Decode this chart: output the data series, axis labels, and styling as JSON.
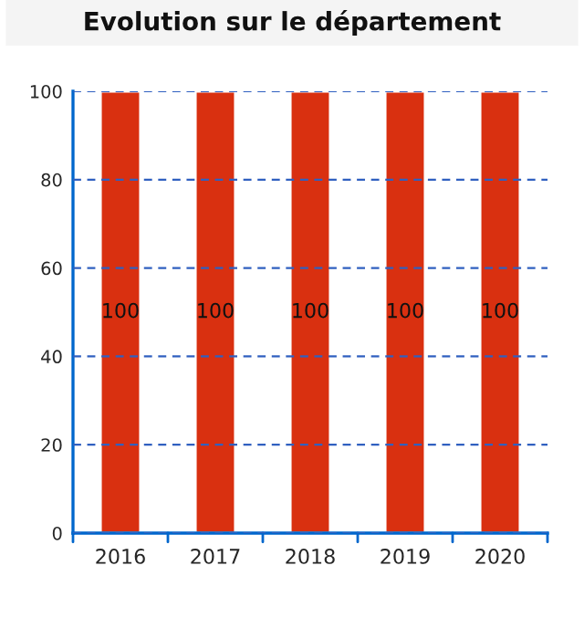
{
  "chart_data": {
    "type": "bar",
    "title": "Evolution sur le département",
    "categories": [
      "2016",
      "2017",
      "2018",
      "2019",
      "2020"
    ],
    "values": [
      100,
      100,
      100,
      100,
      100
    ],
    "color": "#d93010",
    "ylim": [
      0,
      100
    ],
    "yticks": [
      0,
      20,
      40,
      60,
      80,
      100
    ],
    "grid": "y",
    "data_labels": true
  }
}
